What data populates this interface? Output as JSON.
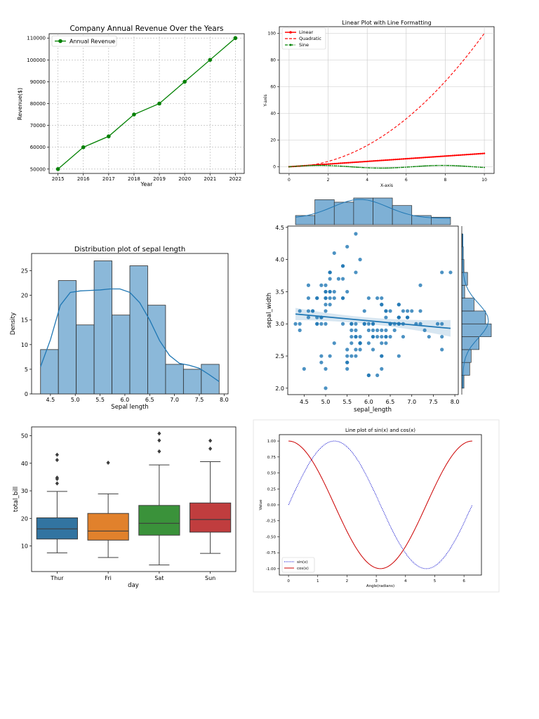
{
  "chart_data": [
    {
      "id": "revenue",
      "type": "line",
      "title": "Company Annual Revenue Over the Years",
      "xlabel": "Year",
      "ylabel": "Revenue($)",
      "x": [
        2015,
        2016,
        2017,
        2018,
        2019,
        2020,
        2021,
        2022
      ],
      "series": [
        {
          "name": "Annual Revenue",
          "color": "#008000",
          "values": [
            50000,
            60000,
            65000,
            75000,
            80000,
            90000,
            100000,
            110000
          ]
        }
      ],
      "xticks": [
        "2015",
        "2016",
        "2017",
        "2018",
        "2019",
        "2020",
        "2021",
        "2022"
      ],
      "yticks": [
        "50000",
        "60000",
        "70000",
        "80000",
        "90000",
        "100000",
        "110000"
      ],
      "xlim": [
        2014.65,
        2022.35
      ],
      "ylim": [
        48000,
        112000
      ],
      "grid": true,
      "legend": "top-left"
    },
    {
      "id": "linear",
      "type": "line",
      "title": "Linear Plot with Line Formatting",
      "xlabel": "X-axis",
      "ylabel": "Y-axis",
      "x_range": [
        0,
        10
      ],
      "series": [
        {
          "name": "Linear",
          "color": "#ff0000",
          "style": "solid-markers",
          "formula": "x"
        },
        {
          "name": "Quadratic",
          "color": "#ff0000",
          "style": "dashed",
          "formula": "x^2"
        },
        {
          "name": "Sine",
          "color": "#008000",
          "style": "dashdot-markers",
          "formula": "sin(x)"
        }
      ],
      "xticks": [
        "0",
        "2",
        "4",
        "6",
        "8",
        "10"
      ],
      "yticks": [
        "0",
        "20",
        "40",
        "60",
        "80",
        "100"
      ],
      "xlim": [
        -0.5,
        10.5
      ],
      "ylim": [
        -5,
        105
      ],
      "grid": true,
      "legend": "top-left"
    },
    {
      "id": "sepal_hist",
      "type": "bar",
      "title": "Distribution plot of sepal length",
      "xlabel": "Sepal length",
      "ylabel": "Density",
      "bin_edges": [
        4.3,
        4.66,
        5.02,
        5.38,
        5.74,
        6.1,
        6.46,
        6.82,
        7.18,
        7.54,
        7.9
      ],
      "values": [
        9,
        23,
        14,
        27,
        16,
        26,
        18,
        6,
        5,
        6
      ],
      "kde": [
        [
          4.3,
          5.5
        ],
        [
          4.5,
          11
        ],
        [
          4.7,
          18
        ],
        [
          4.9,
          20.6
        ],
        [
          5.1,
          20.9
        ],
        [
          5.3,
          21
        ],
        [
          5.5,
          21.1
        ],
        [
          5.7,
          21.3
        ],
        [
          5.9,
          21.3
        ],
        [
          6.1,
          20.6
        ],
        [
          6.3,
          18.5
        ],
        [
          6.5,
          15
        ],
        [
          6.7,
          10.8
        ],
        [
          6.9,
          7.8
        ],
        [
          7.1,
          6.2
        ],
        [
          7.3,
          5.8
        ],
        [
          7.5,
          5.2
        ],
        [
          7.7,
          3.9
        ],
        [
          7.9,
          2.5
        ]
      ],
      "xticks": [
        "4.5",
        "5.0",
        "5.5",
        "6.0",
        "6.5",
        "7.0",
        "7.5",
        "8.0"
      ],
      "yticks": [
        "0",
        "5",
        "10",
        "15",
        "20",
        "25"
      ],
      "xlim": [
        4.12,
        8.08
      ],
      "ylim": [
        0,
        28.5
      ],
      "color": "#7eb0d5"
    },
    {
      "id": "jointplot",
      "type": "scatter",
      "xlabel": "sepal_length",
      "ylabel": "sepal_width",
      "points": [
        [
          5.1,
          3.5
        ],
        [
          4.9,
          3.0
        ],
        [
          4.7,
          3.2
        ],
        [
          4.6,
          3.1
        ],
        [
          5.0,
          3.6
        ],
        [
          5.4,
          3.9
        ],
        [
          4.6,
          3.4
        ],
        [
          5.0,
          3.4
        ],
        [
          4.4,
          2.9
        ],
        [
          4.9,
          3.1
        ],
        [
          5.4,
          3.7
        ],
        [
          4.8,
          3.4
        ],
        [
          4.8,
          3.0
        ],
        [
          4.3,
          3.0
        ],
        [
          5.8,
          4.0
        ],
        [
          5.7,
          4.4
        ],
        [
          5.4,
          3.9
        ],
        [
          5.1,
          3.5
        ],
        [
          5.7,
          3.8
        ],
        [
          5.1,
          3.8
        ],
        [
          5.4,
          3.4
        ],
        [
          5.1,
          3.7
        ],
        [
          4.6,
          3.6
        ],
        [
          5.1,
          3.3
        ],
        [
          4.8,
          3.4
        ],
        [
          5.0,
          3.0
        ],
        [
          5.0,
          3.4
        ],
        [
          5.2,
          3.5
        ],
        [
          5.2,
          3.4
        ],
        [
          4.7,
          3.2
        ],
        [
          4.8,
          3.1
        ],
        [
          5.4,
          3.4
        ],
        [
          5.2,
          4.1
        ],
        [
          5.5,
          4.2
        ],
        [
          4.9,
          3.1
        ],
        [
          5.0,
          3.2
        ],
        [
          5.5,
          3.5
        ],
        [
          4.9,
          3.6
        ],
        [
          4.4,
          3.0
        ],
        [
          5.1,
          3.4
        ],
        [
          5.0,
          3.5
        ],
        [
          4.5,
          2.3
        ],
        [
          4.4,
          3.2
        ],
        [
          5.0,
          3.5
        ],
        [
          5.1,
          3.8
        ],
        [
          4.8,
          3.0
        ],
        [
          5.1,
          3.8
        ],
        [
          4.6,
          3.2
        ],
        [
          5.3,
          3.7
        ],
        [
          5.0,
          3.3
        ],
        [
          7.0,
          3.2
        ],
        [
          6.4,
          3.2
        ],
        [
          6.9,
          3.1
        ],
        [
          5.5,
          2.3
        ],
        [
          6.5,
          2.8
        ],
        [
          5.7,
          2.8
        ],
        [
          6.3,
          3.3
        ],
        [
          4.9,
          2.4
        ],
        [
          6.6,
          2.9
        ],
        [
          5.2,
          2.7
        ],
        [
          5.0,
          2.0
        ],
        [
          5.9,
          3.0
        ],
        [
          6.0,
          2.2
        ],
        [
          6.1,
          2.9
        ],
        [
          5.6,
          2.9
        ],
        [
          6.7,
          3.1
        ],
        [
          5.6,
          3.0
        ],
        [
          5.8,
          2.7
        ],
        [
          6.2,
          2.2
        ],
        [
          5.6,
          2.5
        ],
        [
          5.9,
          3.2
        ],
        [
          6.1,
          2.8
        ],
        [
          6.3,
          2.5
        ],
        [
          6.1,
          2.8
        ],
        [
          6.4,
          2.9
        ],
        [
          6.6,
          3.0
        ],
        [
          6.8,
          2.8
        ],
        [
          6.7,
          3.0
        ],
        [
          6.0,
          2.9
        ],
        [
          5.7,
          2.6
        ],
        [
          5.5,
          2.4
        ],
        [
          5.5,
          2.4
        ],
        [
          5.8,
          2.7
        ],
        [
          6.0,
          2.7
        ],
        [
          5.4,
          3.0
        ],
        [
          6.0,
          3.4
        ],
        [
          6.7,
          3.1
        ],
        [
          6.3,
          2.3
        ],
        [
          5.6,
          3.0
        ],
        [
          5.5,
          2.5
        ],
        [
          5.5,
          2.6
        ],
        [
          6.1,
          3.0
        ],
        [
          5.8,
          2.6
        ],
        [
          5.0,
          2.3
        ],
        [
          5.6,
          2.7
        ],
        [
          5.7,
          3.0
        ],
        [
          5.7,
          2.9
        ],
        [
          6.2,
          2.9
        ],
        [
          5.1,
          2.5
        ],
        [
          5.7,
          2.8
        ],
        [
          6.3,
          3.3
        ],
        [
          5.8,
          2.7
        ],
        [
          7.1,
          3.0
        ],
        [
          6.3,
          2.9
        ],
        [
          6.5,
          3.0
        ],
        [
          7.6,
          3.0
        ],
        [
          4.9,
          2.5
        ],
        [
          7.3,
          2.9
        ],
        [
          6.7,
          2.5
        ],
        [
          7.2,
          3.6
        ],
        [
          6.5,
          3.2
        ],
        [
          6.4,
          2.7
        ],
        [
          6.8,
          3.0
        ],
        [
          5.7,
          2.5
        ],
        [
          5.8,
          2.8
        ],
        [
          6.4,
          3.2
        ],
        [
          6.5,
          3.0
        ],
        [
          7.7,
          3.8
        ],
        [
          7.7,
          2.6
        ],
        [
          6.0,
          2.2
        ],
        [
          6.9,
          3.2
        ],
        [
          5.6,
          2.8
        ],
        [
          7.7,
          2.8
        ],
        [
          6.3,
          2.7
        ],
        [
          6.7,
          3.3
        ],
        [
          7.2,
          3.2
        ],
        [
          6.2,
          2.8
        ],
        [
          6.1,
          3.0
        ],
        [
          6.4,
          2.8
        ],
        [
          7.2,
          3.0
        ],
        [
          7.4,
          2.8
        ],
        [
          7.9,
          3.8
        ],
        [
          6.4,
          2.8
        ],
        [
          6.3,
          2.8
        ],
        [
          6.1,
          2.6
        ],
        [
          7.7,
          3.0
        ],
        [
          6.3,
          3.4
        ],
        [
          6.4,
          3.1
        ],
        [
          6.0,
          3.0
        ],
        [
          6.9,
          3.1
        ],
        [
          6.7,
          3.1
        ],
        [
          6.9,
          3.1
        ],
        [
          5.8,
          2.7
        ],
        [
          6.8,
          3.2
        ],
        [
          6.7,
          3.3
        ],
        [
          6.7,
          3.0
        ],
        [
          6.3,
          2.5
        ],
        [
          6.5,
          3.0
        ],
        [
          6.2,
          3.4
        ],
        [
          5.9,
          3.0
        ]
      ],
      "regression": {
        "intercept": 3.418947,
        "slope": -0.061885,
        "ci_halfwidth_ends": 0.13,
        "ci_halfwidth_mid": 0.05
      },
      "top_hist": {
        "bin_edges": [
          4.3,
          4.75,
          5.2,
          5.65,
          6.1,
          6.55,
          7.0,
          7.45,
          7.9
        ],
        "values": [
          11,
          30,
          27,
          32,
          32,
          23,
          11,
          9
        ]
      },
      "right_hist": {
        "bin_edges": [
          2.0,
          2.2,
          2.4,
          2.6,
          2.8,
          3.0,
          3.2,
          3.4,
          3.6,
          3.8,
          4.0,
          4.2,
          4.4
        ],
        "values": [
          3,
          11,
          13,
          24,
          41,
          33,
          17,
          4,
          8,
          3,
          2,
          1
        ]
      },
      "xticks": [
        "4.5",
        "5.0",
        "5.5",
        "6.0",
        "6.5",
        "7.0",
        "7.5",
        "8.0"
      ],
      "yticks": [
        "2.0",
        "2.5",
        "3.0",
        "3.5",
        "4.0",
        "4.5"
      ],
      "xlim": [
        4.12,
        8.08
      ],
      "ylim": [
        1.9,
        4.52
      ],
      "color": "#1f77b4"
    },
    {
      "id": "tips_box",
      "type": "box",
      "xlabel": "day",
      "ylabel": "total_bill",
      "categories": [
        "Thur",
        "Fri",
        "Sat",
        "Sun"
      ],
      "boxes": [
        {
          "whislo": 7.5,
          "q1": 12.5,
          "med": 16.2,
          "q3": 20.2,
          "whishi": 29.8,
          "fliers": [
            32.7,
            34.8,
            34.3,
            41.2,
            43.1
          ],
          "color": "#3274a1"
        },
        {
          "whislo": 5.8,
          "q1": 12.1,
          "med": 15.4,
          "q3": 21.8,
          "whishi": 28.9,
          "fliers": [
            40.2
          ],
          "color": "#e1812c"
        },
        {
          "whislo": 3.1,
          "q1": 13.9,
          "med": 18.2,
          "q3": 24.7,
          "whishi": 39.4,
          "fliers": [
            44.3,
            48.3,
            50.8
          ],
          "color": "#3a923a"
        },
        {
          "whislo": 7.3,
          "q1": 15.0,
          "med": 19.6,
          "q3": 25.6,
          "whishi": 40.6,
          "fliers": [
            45.3,
            48.2
          ],
          "color": "#c03d3e"
        }
      ],
      "yticks": [
        "10",
        "20",
        "30",
        "40",
        "50"
      ],
      "ylim": [
        0.7,
        53.2
      ]
    },
    {
      "id": "sincos",
      "type": "line",
      "title": "Line plot of sin(x) and cos(x)",
      "xlabel": "Angle(radians)",
      "ylabel": "Value",
      "x_range": [
        0,
        6.283
      ],
      "series": [
        {
          "name": "sin(x)",
          "color": "#0000cc",
          "style": "dotted",
          "formula": "sin(x)"
        },
        {
          "name": "cos(x)",
          "color": "#cc0000",
          "style": "solid",
          "formula": "cos(x)"
        }
      ],
      "xticks": [
        "0",
        "1",
        "2",
        "3",
        "4",
        "5",
        "6"
      ],
      "yticks": [
        "-1.00",
        "-0.75",
        "-0.50",
        "-0.25",
        "0.00",
        "0.25",
        "0.50",
        "0.75",
        "1.00"
      ],
      "xlim": [
        -0.314,
        6.597
      ],
      "ylim": [
        -1.1,
        1.1
      ],
      "legend": "bottom-left"
    }
  ]
}
